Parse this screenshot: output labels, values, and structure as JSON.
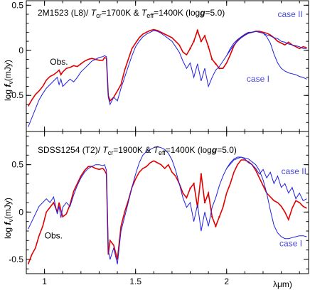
{
  "colors": {
    "observed": "#e00000",
    "model": "#2020e0",
    "annotation": "#4a4ad8",
    "frame": "#000000"
  },
  "xaxis_label": "λμm)",
  "chart_data": [
    {
      "type": "line",
      "title_parts": [
        "2M1523 (L8)/ ",
        "T",
        "cr",
        "=1700K & ",
        "T",
        "eff",
        "=1400K (log",
        "g",
        "=5.0)"
      ],
      "ylabel_parts": [
        "log ",
        "f",
        "ν",
        "(mJy)"
      ],
      "xlim": [
        0.9,
        2.45
      ],
      "ylim": [
        -0.9,
        0.55
      ],
      "x_ticks": [
        1,
        1.5,
        2
      ],
      "y_ticks": [
        0.5,
        0,
        -0.5
      ],
      "y_tick_labels": [
        "0.5",
        "0",
        "-0.5"
      ],
      "annotations": [
        {
          "text": "Obs.",
          "x": 1.03,
          "y": -0.16
        },
        {
          "text": "case II",
          "x": 2.28,
          "y": 0.37
        },
        {
          "text": "case I",
          "x": 2.11,
          "y": -0.35
        }
      ],
      "series": [
        {
          "style": "observed-red",
          "x": [
            0.91,
            0.93,
            0.95,
            0.97,
            0.99,
            1.01,
            1.03,
            1.05,
            1.07,
            1.08,
            1.09,
            1.1,
            1.12,
            1.14,
            1.16,
            1.18,
            1.2,
            1.22,
            1.24,
            1.26,
            1.28,
            1.3,
            1.32,
            1.33,
            1.34,
            1.35,
            1.36,
            1.38,
            1.4,
            1.42,
            1.44,
            1.46,
            1.48,
            1.5,
            1.52,
            1.54,
            1.56,
            1.58,
            1.6,
            1.62,
            1.64,
            1.66,
            1.68,
            1.7,
            1.72,
            1.74,
            1.76,
            1.78,
            1.8,
            1.82,
            1.84,
            1.86,
            1.88,
            1.9,
            1.92,
            1.94,
            1.96,
            1.98,
            2.0,
            2.02,
            2.04,
            2.06,
            2.08,
            2.1,
            2.12,
            2.14,
            2.16,
            2.18,
            2.2,
            2.22,
            2.24,
            2.26,
            2.28,
            2.3,
            2.32,
            2.34,
            2.36,
            2.38,
            2.4,
            2.42,
            2.44
          ],
          "y": [
            -0.62,
            -0.55,
            -0.49,
            -0.45,
            -0.4,
            -0.33,
            -0.29,
            -0.27,
            -0.24,
            -0.22,
            -0.27,
            -0.24,
            -0.2,
            -0.19,
            -0.17,
            -0.18,
            -0.15,
            -0.12,
            -0.1,
            -0.09,
            -0.1,
            -0.11,
            -0.11,
            -0.08,
            -0.09,
            -0.5,
            -0.56,
            -0.52,
            -0.45,
            -0.38,
            -0.22,
            -0.1,
            0.02,
            0.08,
            0.14,
            0.18,
            0.2,
            0.22,
            0.23,
            0.22,
            0.2,
            0.18,
            0.16,
            0.14,
            0.1,
            0.06,
            -0.02,
            -0.05,
            0.02,
            0.1,
            0.22,
            0.1,
            0.16,
            0.04,
            -0.1,
            -0.15,
            -0.2,
            -0.2,
            -0.14,
            -0.05,
            0.05,
            0.11,
            0.14,
            0.17,
            0.19,
            0.2,
            0.21,
            0.21,
            0.2,
            0.19,
            0.17,
            0.14,
            0.1,
            0.08,
            0.06,
            0.09,
            0.06,
            0.04,
            0.02,
            0.04,
            0.03
          ]
        },
        {
          "name": "case II",
          "style": "model-blue",
          "x": [
            0.91,
            0.93,
            0.95,
            0.97,
            0.99,
            1.01,
            1.03,
            1.05,
            1.07,
            1.08,
            1.09,
            1.1,
            1.12,
            1.14,
            1.16,
            1.18,
            1.2,
            1.22,
            1.24,
            1.26,
            1.28,
            1.3,
            1.32,
            1.33,
            1.34,
            1.35,
            1.36,
            1.38,
            1.4,
            1.42,
            1.44,
            1.46,
            1.48,
            1.5,
            1.52,
            1.54,
            1.56,
            1.58,
            1.6,
            1.62,
            1.64,
            1.66,
            1.68,
            1.7,
            1.72,
            1.74,
            1.76,
            1.78,
            1.8,
            1.82,
            1.84,
            1.86,
            1.88,
            1.9,
            1.92,
            1.94,
            1.96,
            1.98,
            2.0,
            2.02,
            2.04,
            2.06,
            2.08,
            2.1,
            2.12,
            2.14,
            2.16,
            2.18,
            2.2,
            2.22,
            2.24,
            2.26,
            2.28,
            2.3,
            2.32,
            2.34,
            2.36,
            2.38,
            2.4,
            2.42,
            2.44
          ],
          "y": [
            -0.85,
            -0.75,
            -0.65,
            -0.55,
            -0.48,
            -0.42,
            -0.38,
            -0.34,
            -0.3,
            -0.38,
            -0.32,
            -0.4,
            -0.36,
            -0.32,
            -0.35,
            -0.3,
            -0.24,
            -0.2,
            -0.16,
            -0.12,
            -0.1,
            -0.08,
            -0.07,
            -0.06,
            -0.07,
            -0.52,
            -0.6,
            -0.52,
            -0.56,
            -0.42,
            -0.3,
            -0.18,
            -0.06,
            0.04,
            0.1,
            0.15,
            0.18,
            0.2,
            0.22,
            0.21,
            0.19,
            0.16,
            0.13,
            0.1,
            0.04,
            -0.02,
            -0.12,
            -0.2,
            -0.14,
            -0.3,
            -0.15,
            -0.34,
            -0.2,
            -0.4,
            -0.3,
            -0.22,
            -0.18,
            -0.12,
            -0.06,
            0.02,
            0.08,
            0.12,
            0.15,
            0.18,
            0.2,
            0.2,
            0.21,
            0.2,
            0.19,
            0.17,
            0.16,
            0.14,
            0.13,
            0.1,
            0.09,
            0.07,
            0.06,
            0.05,
            0.04,
            0.02,
            0.02
          ]
        },
        {
          "name": "case I",
          "style": "model-blue",
          "x": [
            2.0,
            2.04,
            2.08,
            2.12,
            2.16,
            2.2,
            2.22,
            2.24,
            2.26,
            2.28,
            2.3,
            2.32,
            2.34,
            2.36,
            2.38,
            2.4,
            2.42,
            2.44
          ],
          "y": [
            -0.06,
            0.06,
            0.14,
            0.19,
            0.21,
            0.19,
            0.15,
            0.08,
            -0.04,
            -0.14,
            -0.2,
            -0.23,
            -0.25,
            -0.26,
            -0.27,
            -0.29,
            -0.3,
            -0.32
          ]
        }
      ]
    },
    {
      "type": "line",
      "title_parts": [
        "SDSS1254 (T2)/ ",
        "T",
        "cr",
        "=1900K & ",
        "T",
        "eff",
        "=1400K (log",
        "g",
        "=5.0)"
      ],
      "ylabel_parts": [
        "log ",
        "f",
        "ν",
        "(mJy)"
      ],
      "xlim": [
        0.9,
        2.45
      ],
      "ylim": [
        -0.65,
        0.85
      ],
      "x_ticks": [
        1,
        1.5,
        2
      ],
      "x_tick_labels": [
        "1",
        "1.5",
        "2"
      ],
      "y_ticks": [
        0.5,
        0,
        -0.5
      ],
      "y_tick_labels": [
        "0.5",
        "0",
        "-0.5"
      ],
      "annotations": [
        {
          "text": "Obs.",
          "x": 1.0,
          "y": -0.28
        },
        {
          "text": "case II",
          "x": 2.3,
          "y": 0.4
        },
        {
          "text": "case I",
          "x": 2.29,
          "y": -0.36
        }
      ],
      "series": [
        {
          "style": "observed-red",
          "x": [
            0.91,
            0.93,
            0.95,
            0.97,
            0.99,
            1.01,
            1.03,
            1.05,
            1.07,
            1.08,
            1.09,
            1.1,
            1.12,
            1.14,
            1.16,
            1.18,
            1.2,
            1.22,
            1.24,
            1.26,
            1.28,
            1.3,
            1.32,
            1.33,
            1.34,
            1.35,
            1.36,
            1.38,
            1.4,
            1.42,
            1.44,
            1.46,
            1.48,
            1.5,
            1.52,
            1.54,
            1.56,
            1.58,
            1.6,
            1.62,
            1.64,
            1.66,
            1.68,
            1.7,
            1.72,
            1.74,
            1.76,
            1.78,
            1.8,
            1.82,
            1.84,
            1.86,
            1.88,
            1.9,
            1.92,
            1.94,
            1.96,
            1.98,
            2.0,
            2.02,
            2.04,
            2.06,
            2.08,
            2.1,
            2.12,
            2.14,
            2.16,
            2.18,
            2.2,
            2.22,
            2.24,
            2.26,
            2.28,
            2.3,
            2.32,
            2.34,
            2.36,
            2.38,
            2.4,
            2.42,
            2.44
          ],
          "y": [
            -0.55,
            -0.45,
            -0.38,
            -0.25,
            -0.15,
            0.0,
            0.05,
            0.1,
            0.0,
            0.1,
            0.02,
            -0.05,
            -0.02,
            0.08,
            0.22,
            0.3,
            0.38,
            0.44,
            0.48,
            0.48,
            0.46,
            0.45,
            0.46,
            0.44,
            0.4,
            -0.45,
            -0.3,
            -0.35,
            -0.5,
            -0.15,
            0.0,
            0.12,
            0.26,
            0.35,
            0.42,
            0.46,
            0.48,
            0.52,
            0.54,
            0.52,
            0.5,
            0.46,
            0.5,
            0.42,
            0.38,
            0.3,
            0.2,
            0.15,
            0.25,
            0.3,
            0.05,
            0.4,
            0.1,
            0.2,
            -0.05,
            -0.15,
            -0.05,
            0.05,
            0.2,
            0.3,
            0.42,
            0.5,
            0.55,
            0.55,
            0.53,
            0.5,
            0.44,
            0.36,
            0.28,
            0.2,
            0.16,
            0.12,
            0.1,
            0.06,
            0.0,
            -0.08,
            0.04,
            0.12,
            0.1,
            0.06,
            0.04
          ]
        },
        {
          "name": "case II",
          "style": "model-blue",
          "x": [
            0.91,
            0.93,
            0.95,
            0.97,
            0.99,
            1.01,
            1.03,
            1.05,
            1.07,
            1.08,
            1.09,
            1.1,
            1.12,
            1.14,
            1.16,
            1.18,
            1.2,
            1.22,
            1.24,
            1.26,
            1.28,
            1.3,
            1.32,
            1.33,
            1.34,
            1.35,
            1.36,
            1.38,
            1.4,
            1.42,
            1.44,
            1.46,
            1.48,
            1.5,
            1.52,
            1.54,
            1.56,
            1.58,
            1.6,
            1.62,
            1.64,
            1.66,
            1.68,
            1.7,
            1.72,
            1.74,
            1.76,
            1.78,
            1.8,
            1.82,
            1.84,
            1.86,
            1.88,
            1.9,
            1.92,
            1.94,
            1.96,
            1.98,
            2.0,
            2.02,
            2.04,
            2.06,
            2.08,
            2.1,
            2.12,
            2.14,
            2.16,
            2.18,
            2.2,
            2.22,
            2.24,
            2.26,
            2.28,
            2.3,
            2.32,
            2.34,
            2.36,
            2.38,
            2.4,
            2.42,
            2.44
          ],
          "y": [
            -0.18,
            -0.1,
            -0.02,
            0.06,
            0.1,
            0.14,
            0.1,
            0.16,
            -0.02,
            0.06,
            -0.06,
            0.05,
            0.1,
            0.06,
            0.18,
            0.28,
            0.36,
            0.42,
            0.46,
            0.48,
            0.5,
            0.5,
            0.49,
            0.5,
            0.44,
            -0.4,
            -0.5,
            -0.38,
            -0.55,
            -0.2,
            -0.05,
            0.1,
            0.26,
            0.4,
            0.52,
            0.6,
            0.64,
            0.66,
            0.68,
            0.69,
            0.68,
            0.66,
            0.62,
            0.55,
            0.44,
            0.3,
            0.15,
            0.05,
            0.1,
            -0.1,
            0.08,
            -0.2,
            0.0,
            -0.15,
            0.05,
            0.15,
            0.28,
            0.38,
            0.46,
            0.52,
            0.56,
            0.58,
            0.58,
            0.56,
            0.52,
            0.5,
            0.46,
            0.4,
            0.45,
            0.36,
            0.42,
            0.3,
            0.38,
            0.26,
            0.3,
            0.2,
            0.26,
            0.14,
            0.2,
            0.12,
            0.14
          ]
        },
        {
          "name": "case I",
          "style": "model-blue",
          "x": [
            2.0,
            2.04,
            2.08,
            2.12,
            2.16,
            2.18,
            2.2,
            2.22,
            2.24,
            2.26,
            2.28,
            2.3,
            2.32,
            2.34,
            2.36,
            2.38,
            2.4,
            2.42,
            2.44
          ],
          "y": [
            0.46,
            0.55,
            0.58,
            0.56,
            0.5,
            0.44,
            0.34,
            0.2,
            0.02,
            -0.14,
            -0.22,
            -0.26,
            -0.28,
            -0.28,
            -0.27,
            -0.26,
            -0.25,
            -0.25,
            -0.26
          ]
        }
      ]
    }
  ]
}
